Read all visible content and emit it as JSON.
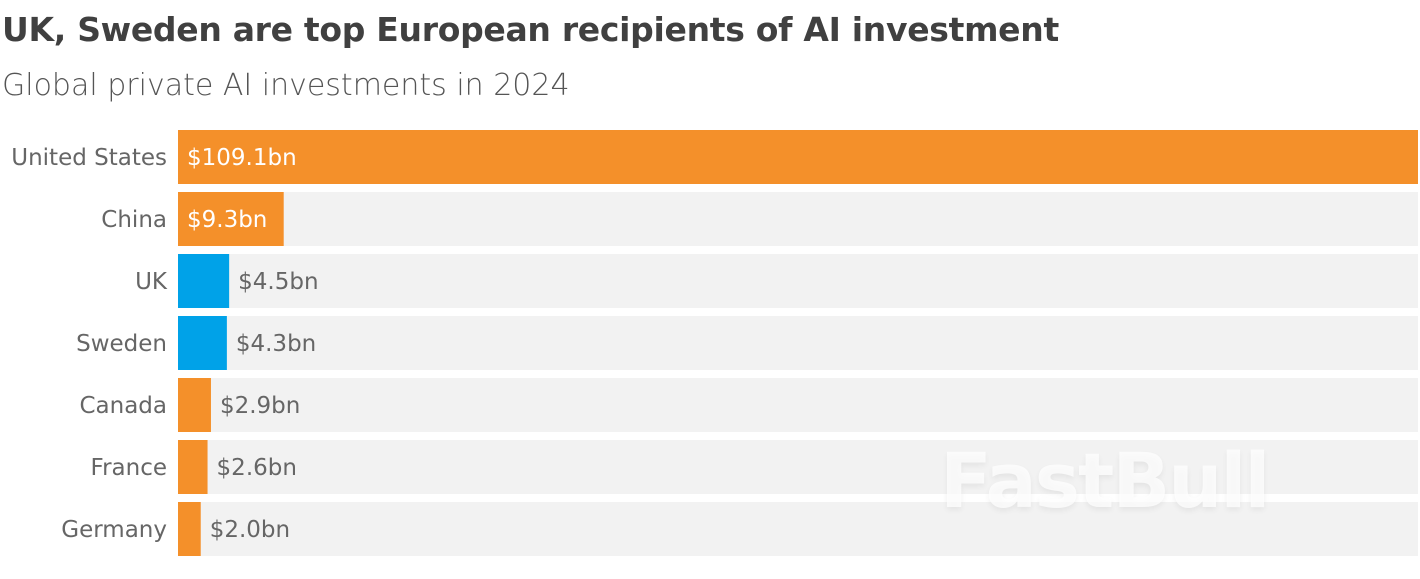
{
  "title": "UK, Sweden are top European recipients of AI investment",
  "subtitle": "Global private AI investments in 2024",
  "watermark": "FastBull",
  "colors": {
    "orange": "#f4902a",
    "blue": "#00a2e8",
    "track": "#f2f2f2",
    "label_inside": "#ffffff",
    "label_outside": "#666666"
  },
  "chart_data": {
    "type": "bar",
    "orientation": "horizontal",
    "title": "UK, Sweden are top European recipients of AI investment",
    "subtitle": "Global private AI investments in 2024",
    "unit": "$bn",
    "xlim": [
      0,
      109.1
    ],
    "grid": false,
    "categories": [
      "United States",
      "China",
      "UK",
      "Sweden",
      "Canada",
      "France",
      "Germany"
    ],
    "values": [
      109.1,
      9.3,
      4.5,
      4.3,
      2.9,
      2.6,
      2.0
    ],
    "labels": [
      "$109.1bn",
      "$9.3bn",
      "$4.5bn",
      "$4.3bn",
      "$2.9bn",
      "$2.6bn",
      "$2.0bn"
    ],
    "bar_colors": [
      "#f4902a",
      "#f4902a",
      "#00a2e8",
      "#00a2e8",
      "#f4902a",
      "#f4902a",
      "#f4902a"
    ]
  }
}
